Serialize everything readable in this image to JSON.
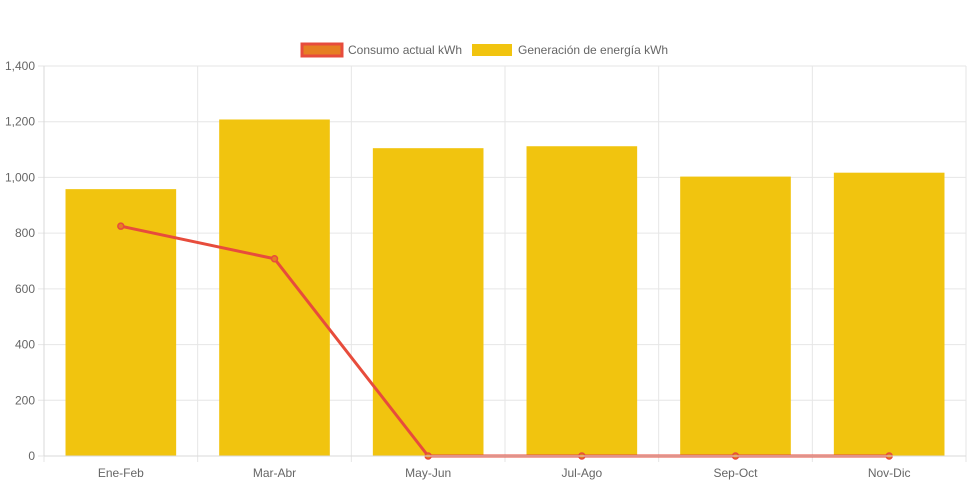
{
  "legend": {
    "consumo_label": "Consumo actual kWh",
    "generacion_label": "Generación de energía kWh"
  },
  "colors": {
    "bar": "#f1c40f",
    "line": "#e74c3c",
    "line_fill": "#e67e22",
    "grid": "#e6e6e6",
    "text": "#666666"
  },
  "chart_data": {
    "type": "bar",
    "categories": [
      "Ene-Feb",
      "Mar-Abr",
      "May-Jun",
      "Jul-Ago",
      "Sep-Oct",
      "Nov-Dic"
    ],
    "series": [
      {
        "name": "Consumo actual kWh",
        "type": "line",
        "values": [
          825,
          708,
          0,
          0,
          0,
          0
        ]
      },
      {
        "name": "Generación de energía kWh",
        "type": "bar",
        "values": [
          958,
          1208,
          1105,
          1112,
          1003,
          1017
        ]
      }
    ],
    "ylim": [
      0,
      1400
    ],
    "yticks": [
      0,
      200,
      400,
      600,
      800,
      1000,
      1200,
      1400
    ],
    "ytick_labels": [
      "0",
      "200",
      "400",
      "600",
      "800",
      "1,000",
      "1,200",
      "1,400"
    ],
    "grid": true,
    "legend_position": "top"
  }
}
